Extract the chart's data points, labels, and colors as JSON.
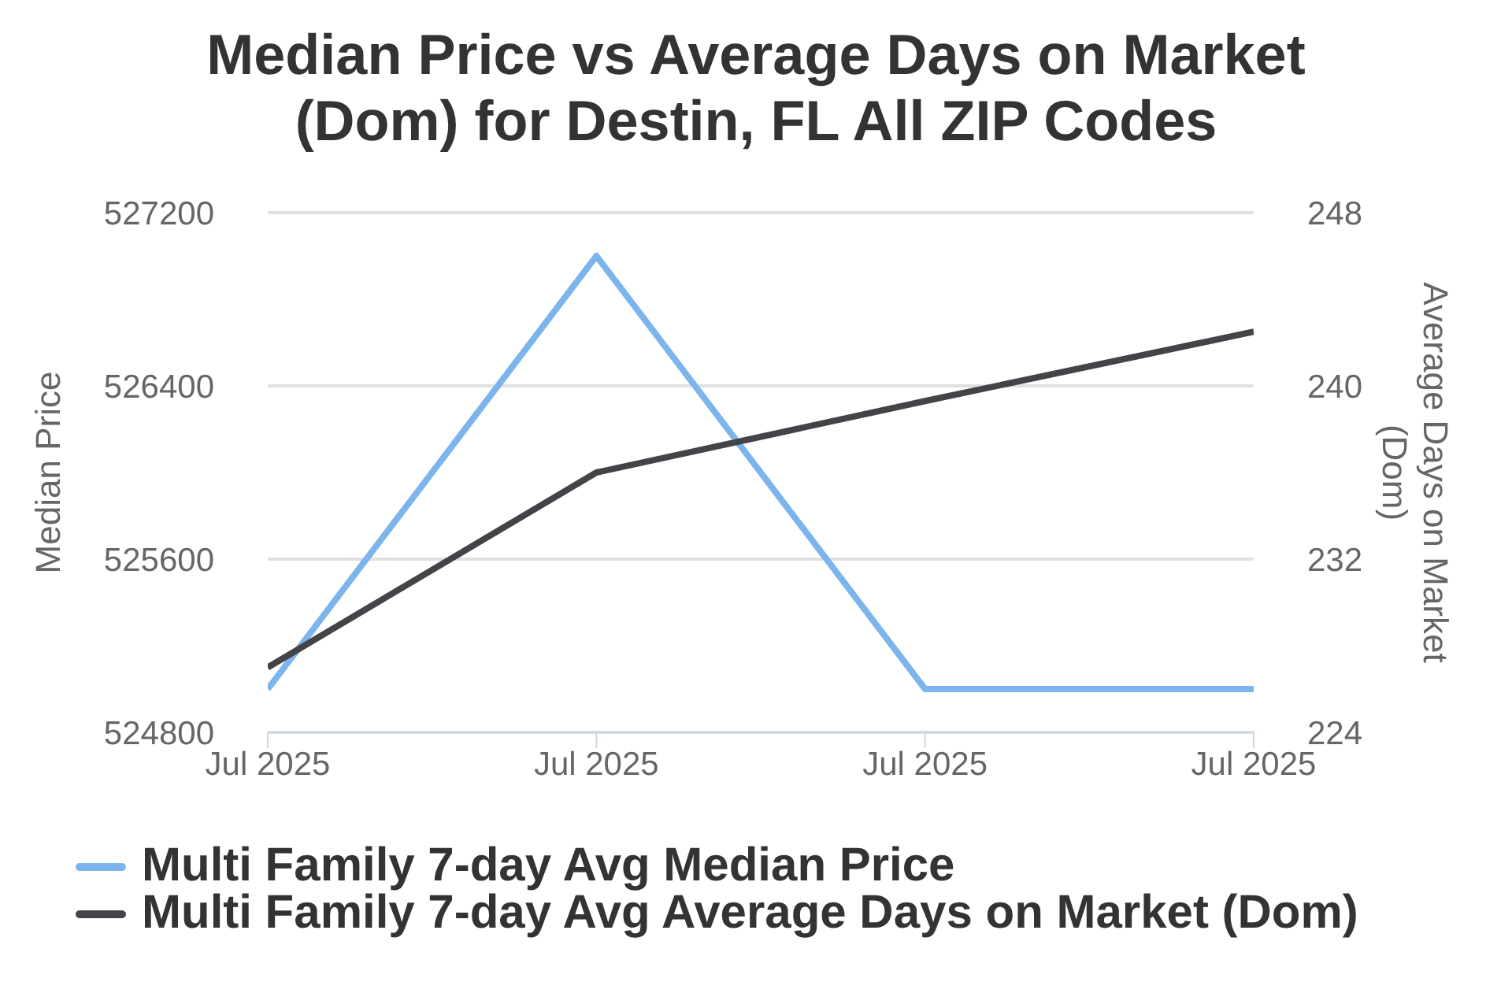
{
  "chart_data": {
    "type": "line",
    "title": "Median Price vs Average Days on Market (Dom) for Destin, FL All ZIP Codes",
    "categories": [
      "Jul 2025",
      "Jul 2025",
      "Jul 2025",
      "Jul 2025"
    ],
    "ylabel": "Median Price",
    "y2label": "Average Days on Market (Dom)",
    "ylim": [
      524800,
      527200
    ],
    "yticks": [
      524800,
      525600,
      526400,
      527200
    ],
    "y2lim": [
      224,
      248
    ],
    "y2ticks": [
      224,
      232,
      240,
      248
    ],
    "series": [
      {
        "name": "Multi Family 7-day Avg Median Price",
        "color": "#7cb5ec",
        "values": [
          525000,
          527000,
          525000,
          525000
        ]
      },
      {
        "name": "Multi Family 7-day Avg Average Days on Market (Dom)",
        "color": "#434348",
        "values": [
          227,
          236,
          239.3,
          242.5
        ],
        "axis": "y2"
      }
    ],
    "grid": "y",
    "legend": "bottom",
    "marker": "none",
    "line_style": "solid"
  }
}
